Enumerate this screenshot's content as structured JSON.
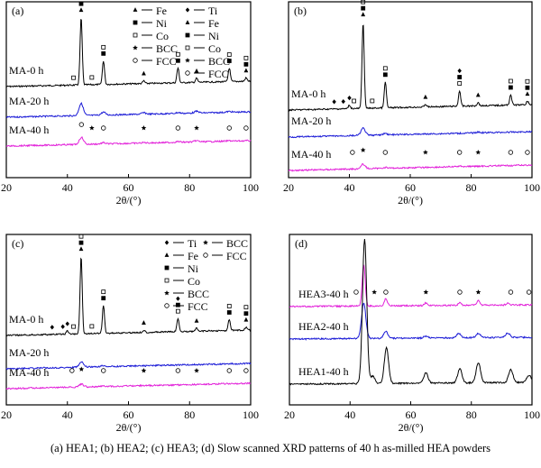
{
  "caption": "(a) HEA1; (b) HEA2; (c) HEA3; (d) Slow  scanned XRD patterns of 40 h as-milled HEA powders",
  "colors": {
    "black": "#000000",
    "blue": "#1a1ad6",
    "magenta": "#e21fd9"
  },
  "chart_data": [
    {
      "type": "line",
      "panel_label": "(a)",
      "xlabel": "2θ/(°)",
      "xlim": [
        20,
        100
      ],
      "xticks": [
        "20",
        "40",
        "60",
        "80",
        "100"
      ],
      "legend": [
        {
          "marker": "triangle",
          "label": "Fe"
        },
        {
          "marker": "square-filled",
          "label": "Ni"
        },
        {
          "marker": "square-open",
          "label": "Co"
        },
        {
          "marker": "star",
          "label": "BCC"
        },
        {
          "marker": "circle-open",
          "label": "FCC"
        }
      ],
      "series": [
        {
          "name": "MA-0 h",
          "color": "#000000",
          "peaks": [
            [
              44.5,
              1.0
            ],
            [
              51.8,
              0.35
            ],
            [
              65,
              0.04
            ],
            [
              76.2,
              0.22
            ],
            [
              82.3,
              0.06
            ],
            [
              93,
              0.2
            ],
            [
              98.5,
              0.05
            ]
          ],
          "markers": [
            [
              42,
              [
                "square-open"
              ]
            ],
            [
              44.5,
              [
                "triangle",
                "square-filled",
                "square-open"
              ]
            ],
            [
              48,
              [
                "square-open"
              ]
            ],
            [
              51.8,
              [
                "square-filled",
                "square-open"
              ]
            ],
            [
              65,
              [
                "triangle"
              ]
            ],
            [
              76.2,
              [
                "square-filled",
                "square-open"
              ]
            ],
            [
              82.3,
              [
                "triangle"
              ]
            ],
            [
              93,
              [
                "square-filled",
                "square-open"
              ]
            ],
            [
              98.5,
              [
                "triangle",
                "square-filled",
                "square-open"
              ]
            ]
          ]
        },
        {
          "name": "MA-20 h",
          "color": "#1a1ad6",
          "peaks": [
            [
              44.5,
              0.42
            ],
            [
              51.8,
              0.1
            ],
            [
              65,
              0.05
            ],
            [
              76.2,
              0.03
            ],
            [
              82.3,
              0.06
            ],
            [
              93,
              0.03
            ]
          ],
          "markers": []
        },
        {
          "name": "MA-40 h",
          "color": "#e21fd9",
          "peaks": [
            [
              44.6,
              0.3
            ],
            [
              51.8,
              0.05
            ],
            [
              65,
              0.02
            ],
            [
              76.2,
              0.03
            ],
            [
              82.3,
              0.05
            ],
            [
              93,
              0.02
            ]
          ],
          "markers": [
            [
              44.6,
              [
                "circle-open"
              ]
            ],
            [
              48,
              [
                "star"
              ]
            ],
            [
              51.8,
              [
                "circle-open"
              ]
            ],
            [
              65,
              [
                "star"
              ]
            ],
            [
              76.2,
              [
                "circle-open"
              ]
            ],
            [
              82.3,
              [
                "star"
              ]
            ],
            [
              93,
              [
                "circle-open"
              ]
            ],
            [
              98.5,
              [
                "circle-open"
              ]
            ]
          ]
        }
      ]
    },
    {
      "type": "line",
      "panel_label": "(b)",
      "xlabel": "2θ/(°)",
      "xlim": [
        20,
        100
      ],
      "xticks": [
        "20",
        "40",
        "60",
        "80",
        "100"
      ],
      "legend": [
        {
          "marker": "diamond",
          "label": "Ti"
        },
        {
          "marker": "triangle",
          "label": "Fe"
        },
        {
          "marker": "square-filled",
          "label": "Ni"
        },
        {
          "marker": "square-open",
          "label": "Co"
        },
        {
          "marker": "star",
          "label": "BCC"
        },
        {
          "marker": "circle-open",
          "label": "FCC"
        }
      ],
      "series": [
        {
          "name": "MA-0 h",
          "color": "#000000",
          "peaks": [
            [
              40,
              0.04
            ],
            [
              44.5,
              1.0
            ],
            [
              51.8,
              0.3
            ],
            [
              65,
              0.03
            ],
            [
              76.2,
              0.18
            ],
            [
              82.3,
              0.04
            ],
            [
              93,
              0.12
            ],
            [
              98.5,
              0.04
            ]
          ],
          "markers": [
            [
              35,
              [
                "diamond"
              ]
            ],
            [
              38,
              [
                "diamond"
              ]
            ],
            [
              40,
              [
                "diamond"
              ]
            ],
            [
              41.5,
              [
                "square-open"
              ]
            ],
            [
              44.5,
              [
                "triangle",
                "square-filled",
                "square-open"
              ]
            ],
            [
              47.5,
              [
                "square-open"
              ]
            ],
            [
              51.8,
              [
                "square-filled",
                "square-open"
              ]
            ],
            [
              65,
              [
                "triangle"
              ]
            ],
            [
              76.2,
              [
                "square-open",
                "square-filled",
                "diamond"
              ]
            ],
            [
              82.3,
              [
                "triangle"
              ]
            ],
            [
              93,
              [
                "square-filled",
                "square-open"
              ]
            ],
            [
              98.5,
              [
                "triangle",
                "square-filled",
                "square-open"
              ]
            ]
          ]
        },
        {
          "name": "MA-20 h",
          "color": "#1a1ad6",
          "peaks": [
            [
              44.5,
              0.2
            ],
            [
              51.8,
              0.04
            ],
            [
              82.3,
              0.02
            ]
          ],
          "markers": []
        },
        {
          "name": "MA-40 h",
          "color": "#e21fd9",
          "peaks": [
            [
              44.5,
              0.14
            ],
            [
              51.8,
              0.03
            ],
            [
              76.2,
              0.02
            ]
          ],
          "markers": [
            [
              41,
              [
                "circle-open"
              ]
            ],
            [
              44.5,
              [
                "star"
              ]
            ],
            [
              51.8,
              [
                "circle-open"
              ]
            ],
            [
              65,
              [
                "star"
              ]
            ],
            [
              76.2,
              [
                "circle-open"
              ]
            ],
            [
              82.3,
              [
                "star"
              ]
            ],
            [
              93,
              [
                "circle-open"
              ]
            ],
            [
              98.5,
              [
                "circle-open"
              ]
            ]
          ]
        }
      ]
    },
    {
      "type": "line",
      "panel_label": "(c)",
      "xlabel": "2θ/(°)",
      "xlim": [
        20,
        100
      ],
      "xticks": [
        "20",
        "40",
        "60",
        "80",
        "100"
      ],
      "legend": [
        {
          "marker": "diamond",
          "label": "Ti"
        },
        {
          "marker": "triangle",
          "label": "Fe"
        },
        {
          "marker": "square-filled",
          "label": "Ni"
        },
        {
          "marker": "square-open",
          "label": "Co"
        },
        {
          "marker": "star",
          "label": "BCC"
        },
        {
          "marker": "circle-open",
          "label": "FCC"
        }
      ],
      "series": [
        {
          "name": "MA-0 h",
          "color": "#000000",
          "peaks": [
            [
              40,
              0.04
            ],
            [
              44.5,
              1.0
            ],
            [
              51.8,
              0.36
            ],
            [
              65,
              0.03
            ],
            [
              76.2,
              0.17
            ],
            [
              82.3,
              0.04
            ],
            [
              93,
              0.14
            ],
            [
              98.5,
              0.04
            ]
          ],
          "markers": [
            [
              35,
              [
                "diamond"
              ]
            ],
            [
              38.5,
              [
                "diamond"
              ]
            ],
            [
              40,
              [
                "diamond"
              ]
            ],
            [
              42,
              [
                "square-open"
              ]
            ],
            [
              44.5,
              [
                "triangle",
                "square-filled",
                "square-open"
              ]
            ],
            [
              48,
              [
                "square-open"
              ]
            ],
            [
              51.8,
              [
                "square-filled",
                "square-open"
              ]
            ],
            [
              65,
              [
                "triangle"
              ]
            ],
            [
              76.2,
              [
                "square-open",
                "square-filled",
                "diamond"
              ]
            ],
            [
              82.3,
              [
                "triangle"
              ]
            ],
            [
              93,
              [
                "square-filled",
                "square-open"
              ]
            ],
            [
              98.5,
              [
                "triangle",
                "square-filled",
                "square-open"
              ]
            ]
          ]
        },
        {
          "name": "MA-20 h",
          "color": "#1a1ad6",
          "peaks": [
            [
              44.6,
              0.14
            ],
            [
              51.8,
              0.03
            ]
          ],
          "markers": []
        },
        {
          "name": "MA-40 h",
          "color": "#e21fd9",
          "peaks": [
            [
              44.6,
              0.09
            ],
            [
              51.8,
              0.02
            ]
          ],
          "markers": [
            [
              41.5,
              [
                "circle-open"
              ]
            ],
            [
              44.6,
              [
                "star"
              ]
            ],
            [
              51.8,
              [
                "circle-open"
              ]
            ],
            [
              65,
              [
                "star"
              ]
            ],
            [
              76.2,
              [
                "circle-open"
              ]
            ],
            [
              82.3,
              [
                "star"
              ]
            ],
            [
              93,
              [
                "circle-open"
              ]
            ],
            [
              98.5,
              [
                "circle-open"
              ]
            ]
          ]
        }
      ]
    },
    {
      "type": "line",
      "panel_label": "(d)",
      "xlabel": "2θ/(°)",
      "xlim": [
        20,
        100
      ],
      "xticks": [
        "20",
        "40",
        "60",
        "80",
        "100"
      ],
      "legend": [
        {
          "marker": "star",
          "label": "BCC"
        },
        {
          "marker": "circle-open",
          "label": "FCC"
        }
      ],
      "series": [
        {
          "name": "HEA3-40 h",
          "color": "#e21fd9",
          "peaks": [
            [
              44.5,
              0.45
            ],
            [
              51.8,
              0.08
            ],
            [
              65,
              0.03
            ],
            [
              76.2,
              0.03
            ],
            [
              82.3,
              0.05
            ],
            [
              92,
              0.02
            ]
          ],
          "markers": [
            [
              42,
              [
                "circle-open"
              ]
            ],
            [
              48,
              [
                "star"
              ]
            ],
            [
              51.8,
              [
                "circle-open"
              ]
            ],
            [
              65,
              [
                "star"
              ]
            ],
            [
              76.2,
              [
                "circle-open"
              ]
            ],
            [
              82.3,
              [
                "star"
              ]
            ],
            [
              93,
              [
                "circle-open"
              ]
            ],
            [
              99,
              [
                "circle-open"
              ]
            ]
          ]
        },
        {
          "name": "HEA2-40 h",
          "color": "#1a1ad6",
          "peaks": [
            [
              44.5,
              0.4
            ],
            [
              51.8,
              0.08
            ],
            [
              65,
              0.02
            ],
            [
              75.8,
              0.05
            ],
            [
              82.3,
              0.05
            ],
            [
              92,
              0.05
            ]
          ],
          "markers": []
        },
        {
          "name": "HEA1-40 h",
          "color": "#000000",
          "peaks": [
            [
              44.8,
              1.0
            ],
            [
              47.5,
              0.05
            ],
            [
              52,
              0.25
            ],
            [
              65,
              0.07
            ],
            [
              76.2,
              0.1
            ],
            [
              82.3,
              0.14
            ],
            [
              93,
              0.09
            ],
            [
              99,
              0.05
            ]
          ],
          "markers": []
        }
      ]
    }
  ]
}
